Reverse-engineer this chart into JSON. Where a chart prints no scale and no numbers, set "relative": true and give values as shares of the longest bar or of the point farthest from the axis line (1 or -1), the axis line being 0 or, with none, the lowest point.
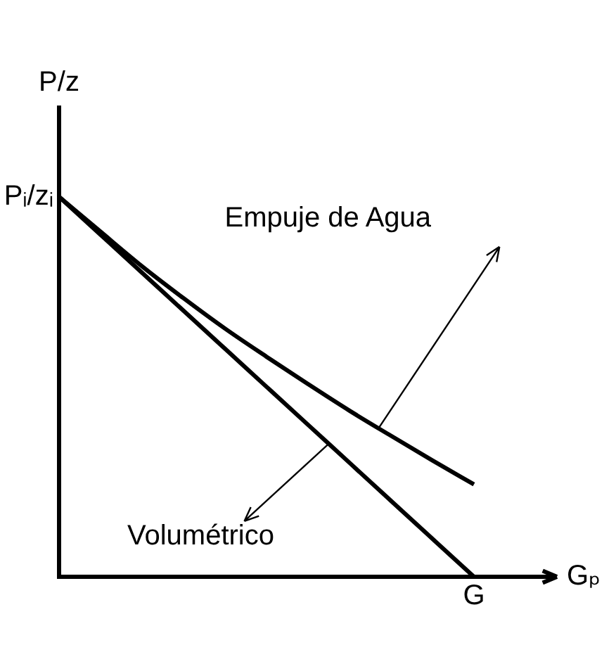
{
  "chart_data": {
    "type": "line",
    "relative": true,
    "xlabel": "Gₚ",
    "ylabel": "P/z",
    "annotations": [
      "Pᵢ/zᵢ",
      "G"
    ],
    "categories": [
      null,
      null,
      null,
      null,
      null,
      null,
      null,
      null,
      null,
      null,
      null
    ],
    "marker": "none",
    "line_style": "solid",
    "series": [
      {
        "name": "Empuje de Agua",
        "color": "#000000",
        "values": [
          1,
          0.908,
          0.817,
          0.733,
          0.653,
          0.579,
          0.507,
          0.437,
          0.371,
          0.306,
          0.243
        ]
      },
      {
        "name": "Volumétrico",
        "color": "#000000",
        "values": [
          1,
          0.9,
          0.8,
          0.7,
          0.6,
          0.5,
          0.4,
          0.3,
          0.2,
          0.1,
          0
        ]
      }
    ]
  }
}
